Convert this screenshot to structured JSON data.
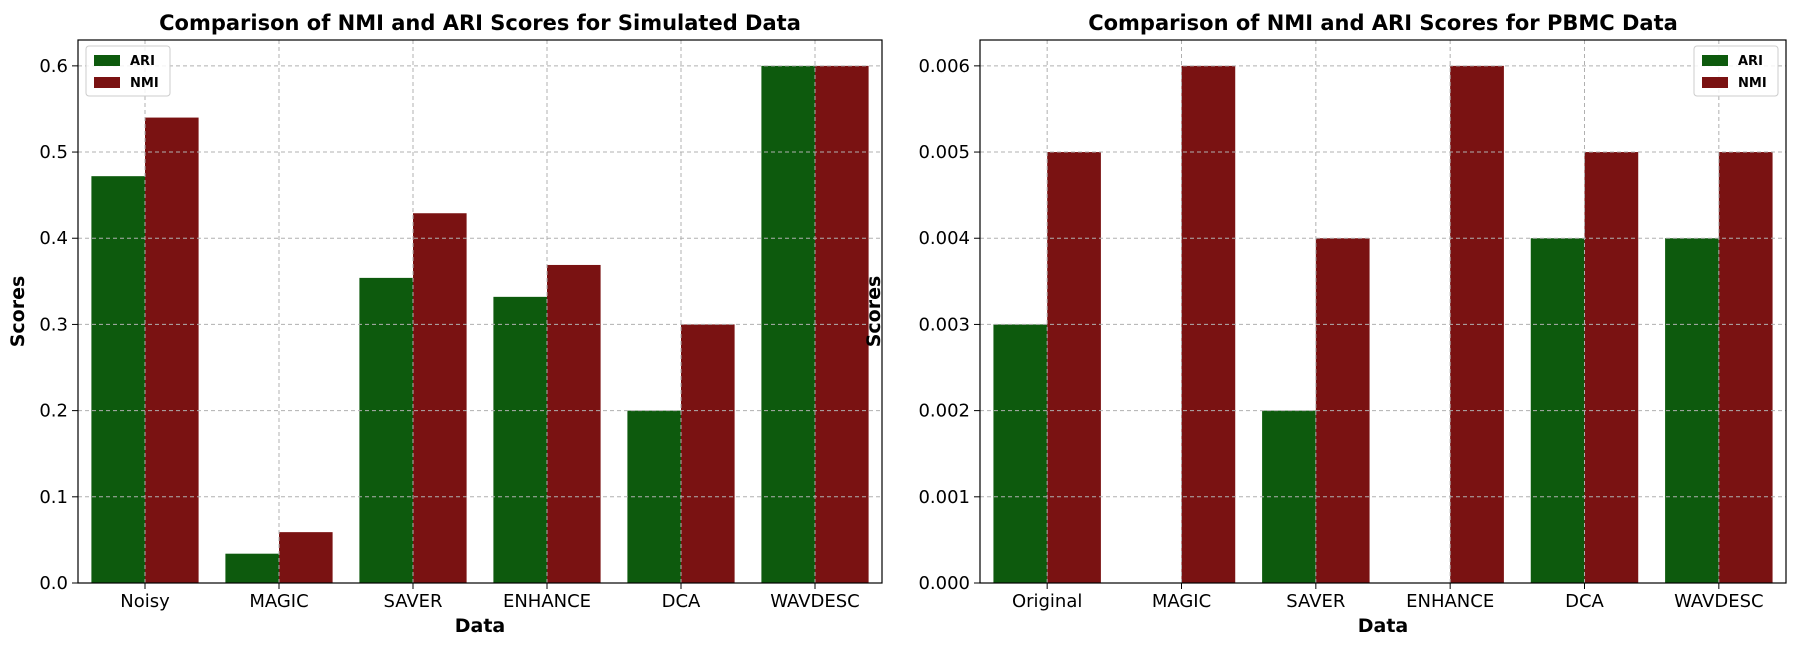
{
  "chart_data": [
    {
      "type": "bar",
      "title": "Comparison of NMI and ARI Scores for Simulated Data",
      "xlabel": "Data",
      "ylabel": "Scores",
      "categories": [
        "Noisy",
        "MAGIC",
        "SAVER",
        "ENHANCE",
        "DCA",
        "WAVDESC"
      ],
      "series": [
        {
          "name": "ARI",
          "color": "#0d5a0d",
          "values": [
            0.472,
            0.034,
            0.354,
            0.332,
            0.2,
            0.6
          ]
        },
        {
          "name": "NMI",
          "color": "#7a1212",
          "values": [
            0.54,
            0.059,
            0.429,
            0.369,
            0.3,
            0.6
          ]
        }
      ],
      "ylim": [
        0,
        0.63
      ],
      "yticks": [
        0.0,
        0.1,
        0.2,
        0.3,
        0.4,
        0.5,
        0.6
      ],
      "ytick_labels": [
        "0.0",
        "0.1",
        "0.2",
        "0.3",
        "0.4",
        "0.5",
        "0.6"
      ],
      "grid": true,
      "legend_position": "top-left"
    },
    {
      "type": "bar",
      "title": "Comparison of NMI and ARI Scores for PBMC Data",
      "xlabel": "Data",
      "ylabel": "Scores",
      "categories": [
        "Original",
        "MAGIC",
        "SAVER",
        "ENHANCE",
        "DCA",
        "WAVDESC"
      ],
      "series": [
        {
          "name": "ARI",
          "color": "#0d5a0d",
          "values": [
            0.003,
            0.0,
            0.002,
            0.0,
            0.004,
            0.004
          ]
        },
        {
          "name": "NMI",
          "color": "#7a1212",
          "values": [
            0.005,
            0.006,
            0.004,
            0.006,
            0.005,
            0.005
          ]
        }
      ],
      "ylim": [
        0,
        0.0063
      ],
      "yticks": [
        0.0,
        0.001,
        0.002,
        0.003,
        0.004,
        0.005,
        0.006
      ],
      "ytick_labels": [
        "0.000",
        "0.001",
        "0.002",
        "0.003",
        "0.004",
        "0.005",
        "0.006"
      ],
      "grid": true,
      "legend_position": "top-right"
    }
  ]
}
